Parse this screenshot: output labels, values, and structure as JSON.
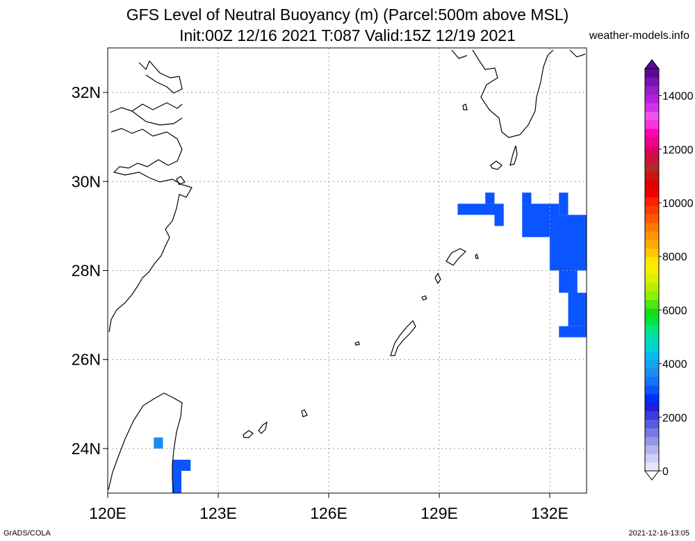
{
  "title": {
    "line1": "GFS Level of Neutral Buoyancy (m) (Parcel:500m above MSL)",
    "line2": "Init:00Z 12/16 2021 T:087 Valid:15Z 12/19 2021"
  },
  "credit": "weather-models.info",
  "footer": {
    "left": "GrADS/COLA",
    "right": "2021-12-16-13:05"
  },
  "map": {
    "lon_range": [
      120,
      133
    ],
    "lat_range": [
      23,
      33
    ],
    "lon_ticks": [
      {
        "value": 120,
        "label": "120E"
      },
      {
        "value": 123,
        "label": "123E"
      },
      {
        "value": 126,
        "label": "126E"
      },
      {
        "value": 129,
        "label": "129E"
      },
      {
        "value": 132,
        "label": "132E"
      }
    ],
    "lat_ticks": [
      {
        "value": 24,
        "label": "24N"
      },
      {
        "value": 26,
        "label": "26N"
      },
      {
        "value": 28,
        "label": "28N"
      },
      {
        "value": 30,
        "label": "30N"
      },
      {
        "value": 32,
        "label": "32N"
      }
    ],
    "grid": true,
    "shaded_cells": [
      {
        "lon0": 129.5,
        "lon1": 130.5,
        "lat0": 29.25,
        "lat1": 29.5,
        "value": 1800,
        "color": "#0a55ff"
      },
      {
        "lon0": 130.25,
        "lon1": 130.5,
        "lat0": 29.5,
        "lat1": 29.75,
        "value": 1800,
        "color": "#0a55ff"
      },
      {
        "lon0": 130.5,
        "lon1": 130.75,
        "lat0": 29.0,
        "lat1": 29.5,
        "value": 1800,
        "color": "#0a55ff"
      },
      {
        "lon0": 131.25,
        "lon1": 131.5,
        "lat0": 29.5,
        "lat1": 29.75,
        "value": 1800,
        "color": "#0a55ff"
      },
      {
        "lon0": 131.25,
        "lon1": 132.25,
        "lat0": 28.75,
        "lat1": 29.5,
        "value": 1800,
        "color": "#0a55ff"
      },
      {
        "lon0": 132.25,
        "lon1": 132.5,
        "lat0": 29.25,
        "lat1": 29.75,
        "value": 1800,
        "color": "#0a55ff"
      },
      {
        "lon0": 132.0,
        "lon1": 133.0,
        "lat0": 28.0,
        "lat1": 29.25,
        "value": 1800,
        "color": "#0a55ff"
      },
      {
        "lon0": 132.25,
        "lon1": 132.75,
        "lat0": 27.5,
        "lat1": 28.0,
        "value": 1800,
        "color": "#0a55ff"
      },
      {
        "lon0": 132.5,
        "lon1": 133.0,
        "lat0": 26.75,
        "lat1": 27.5,
        "value": 1800,
        "color": "#0a55ff"
      },
      {
        "lon0": 132.25,
        "lon1": 133.0,
        "lat0": 26.5,
        "lat1": 26.75,
        "value": 1800,
        "color": "#0a55ff"
      },
      {
        "lon0": 121.25,
        "lon1": 121.5,
        "lat0": 24.0,
        "lat1": 24.25,
        "value": 2800,
        "color": "#1c8cf0"
      },
      {
        "lon0": 121.75,
        "lon1": 122.25,
        "lat0": 23.5,
        "lat1": 23.75,
        "value": 1800,
        "color": "#0a55ff"
      },
      {
        "lon0": 121.75,
        "lon1": 122.0,
        "lat0": 23.0,
        "lat1": 23.5,
        "value": 1800,
        "color": "#0a55ff"
      }
    ]
  },
  "colorbar": {
    "min": 0,
    "max": 15000,
    "tick_labels": [
      {
        "value": 0,
        "label": "0"
      },
      {
        "value": 2000,
        "label": "2000"
      },
      {
        "value": 4000,
        "label": "4000"
      },
      {
        "value": 6000,
        "label": "6000"
      },
      {
        "value": 8000,
        "label": "8000"
      },
      {
        "value": 10000,
        "label": "10000"
      },
      {
        "value": 12000,
        "label": "12000"
      },
      {
        "value": 14000,
        "label": "14000"
      }
    ],
    "colors": [
      "#e6e6fa",
      "#cfcff5",
      "#b4b4f0",
      "#9696eb",
      "#7878e6",
      "#5a5ae1",
      "#3c3cdc",
      "#1e1ee6",
      "#0032ff",
      "#0a55ff",
      "#1473ff",
      "#1c8cf0",
      "#14a5f0",
      "#00bef0",
      "#00d2d2",
      "#00dcb4",
      "#00e682",
      "#00e63c",
      "#14dc14",
      "#50e614",
      "#8cf000",
      "#b4f000",
      "#dcf000",
      "#f5f000",
      "#ffe600",
      "#ffc800",
      "#ffaa00",
      "#ff9600",
      "#ff7800",
      "#ff5a00",
      "#ff3c00",
      "#ff1e00",
      "#f00000",
      "#e10000",
      "#c81414",
      "#b42828",
      "#c8143c",
      "#dc0064",
      "#f0008c",
      "#ff00b4",
      "#ff32dc",
      "#f050f0",
      "#d232e6",
      "#b41edc",
      "#961ec8",
      "#7814b4",
      "#5a0a96"
    ]
  }
}
